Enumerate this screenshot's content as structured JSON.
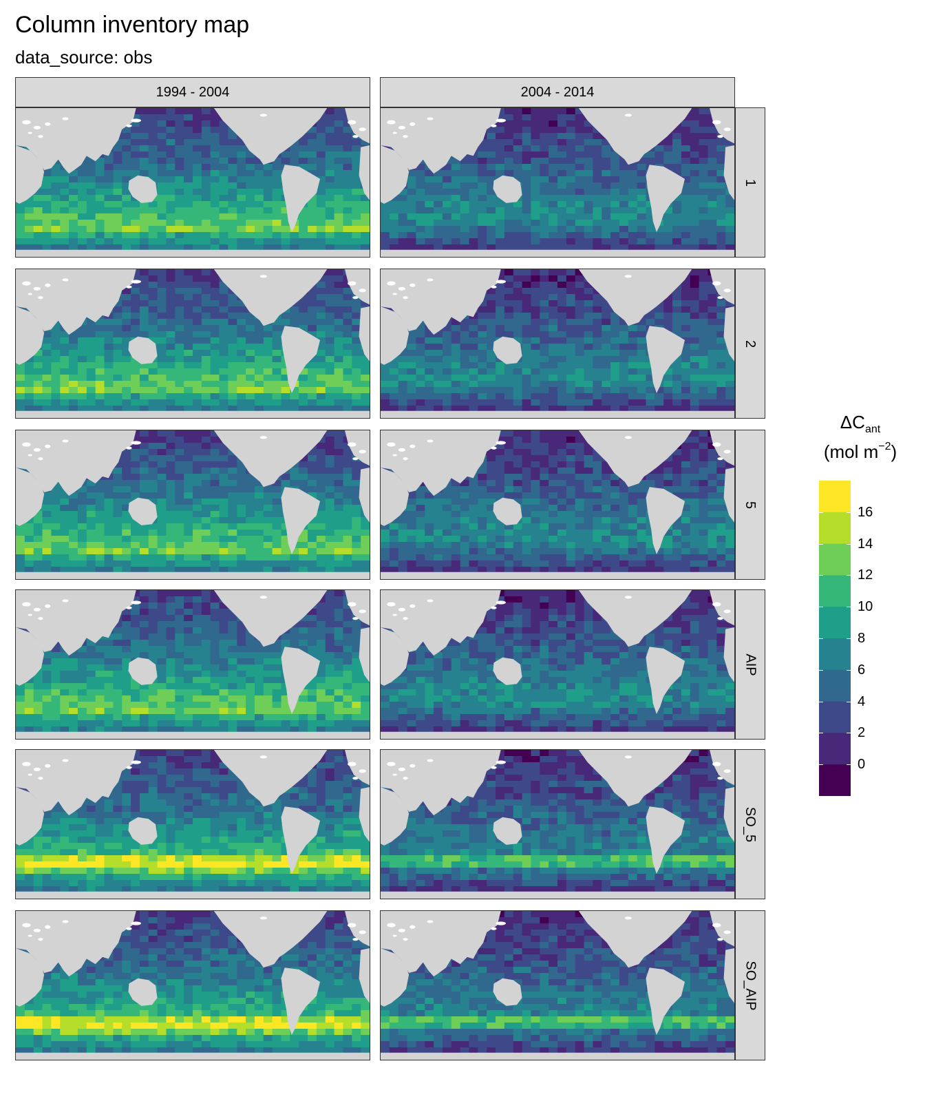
{
  "title": "Column inventory map",
  "subtitle": "data_source: obs",
  "columns": [
    "1994 - 2004",
    "2004 - 2014"
  ],
  "rows": [
    "1",
    "2",
    "5",
    "AIP",
    "SO_5",
    "SO_AIP"
  ],
  "legend": {
    "title_main": "ΔC",
    "title_sub": "ant",
    "unit_open": "(mol m",
    "unit_sup": "−2",
    "unit_close": ")",
    "ticks": [
      "16",
      "14",
      "12",
      "10",
      "8",
      "6",
      "4",
      "2",
      "0"
    ],
    "tick_values": [
      16,
      14,
      12,
      10,
      8,
      6,
      4,
      2,
      0
    ],
    "colors": [
      "#fde725",
      "#b5de2b",
      "#6ece58",
      "#35b779",
      "#1f9e89",
      "#26828e",
      "#31688e",
      "#3e4989",
      "#482878",
      "#440154"
    ]
  },
  "colors": {
    "land": "#d3d3d3",
    "strip": "#d9d9d9",
    "ice": "#ffffff"
  }
}
